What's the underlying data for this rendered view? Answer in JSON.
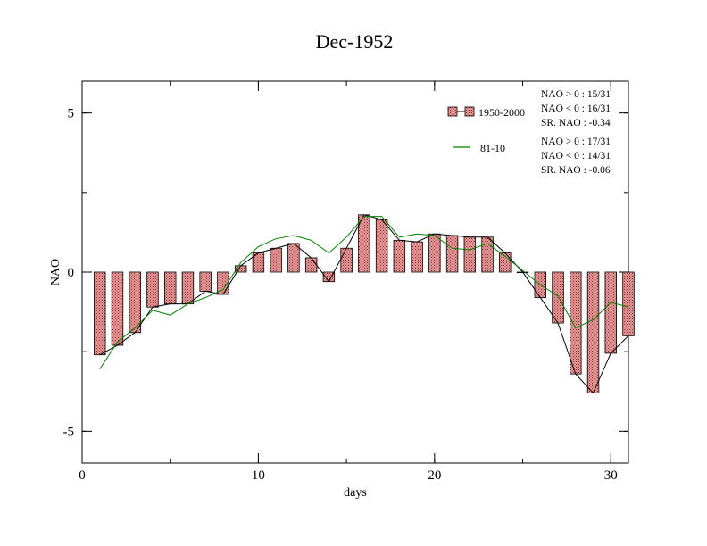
{
  "chart_data": {
    "type": "bar",
    "title": "Dec-1952",
    "xlabel": "days",
    "ylabel": "NAO",
    "xlim": [
      0,
      31
    ],
    "ylim": [
      -6,
      6
    ],
    "xticks": [
      0,
      10,
      20,
      30
    ],
    "yticks": [
      5,
      0,
      -5
    ],
    "ytick_labels": [
      "5",
      "0",
      "-5"
    ],
    "grid": false,
    "legend_position": "top-right",
    "x": [
      1,
      2,
      3,
      4,
      5,
      6,
      7,
      8,
      9,
      10,
      11,
      12,
      13,
      14,
      15,
      16,
      17,
      18,
      19,
      20,
      21,
      22,
      23,
      24,
      25,
      26,
      27,
      28,
      29,
      30,
      31
    ],
    "series": [
      {
        "name": "1950-2000",
        "kind": "bar",
        "color": "#e8a0a0",
        "values": [
          -2.6,
          -2.3,
          -1.9,
          -1.1,
          -1.0,
          -1.0,
          -0.6,
          -0.7,
          0.2,
          0.6,
          0.75,
          0.9,
          0.45,
          -0.3,
          0.75,
          1.8,
          1.65,
          1.0,
          0.95,
          1.2,
          1.15,
          1.1,
          1.1,
          0.6,
          0.0,
          -0.8,
          -1.6,
          -3.2,
          -3.8,
          -2.55,
          -2.0
        ]
      },
      {
        "name": "",
        "kind": "line",
        "color": "#000000",
        "values": [
          -2.6,
          -2.3,
          -1.9,
          -1.1,
          -1.0,
          -1.0,
          -0.6,
          -0.7,
          0.2,
          0.6,
          0.75,
          0.9,
          0.45,
          -0.3,
          0.75,
          1.8,
          1.65,
          1.0,
          0.95,
          1.2,
          1.15,
          1.1,
          1.1,
          0.6,
          0.0,
          -0.8,
          -1.6,
          -3.2,
          -3.8,
          -2.55,
          -2.0
        ]
      },
      {
        "name": "81-10",
        "kind": "line",
        "color": "#008000",
        "values": [
          -3.05,
          -2.2,
          -1.75,
          -1.2,
          -1.35,
          -1.0,
          -0.8,
          -0.55,
          0.3,
          0.8,
          1.05,
          1.15,
          1.0,
          0.6,
          1.1,
          1.75,
          1.75,
          1.1,
          1.2,
          1.15,
          0.75,
          0.7,
          0.9,
          0.5,
          0.05,
          -0.4,
          -0.75,
          -1.75,
          -1.5,
          -0.95,
          -1.1
        ]
      }
    ],
    "legend": [
      {
        "label": "1950-2000",
        "stats": [
          "NAO > 0 : 15/31",
          "NAO < 0 : 16/31",
          "SR. NAO : -0.34"
        ]
      },
      {
        "label": "81-10",
        "stats": [
          "NAO > 0 : 17/31",
          "NAO < 0 : 14/31",
          "SR. NAO : -0.06"
        ]
      }
    ]
  }
}
